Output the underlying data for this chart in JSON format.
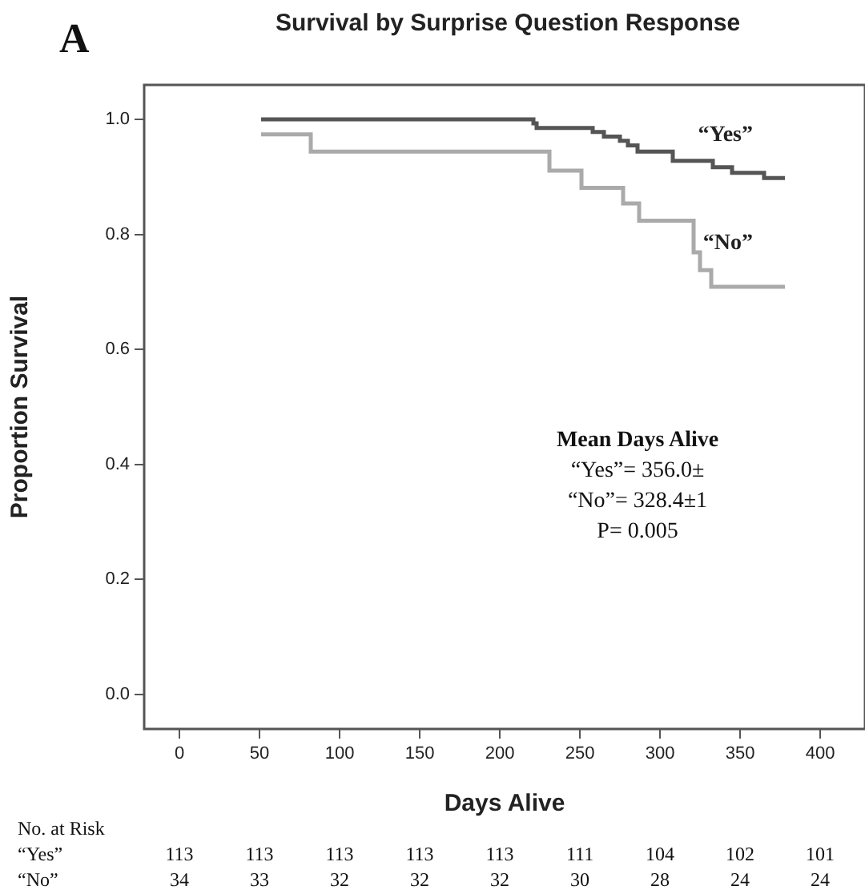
{
  "chart_data": {
    "type": "step",
    "title": "Survival by Surprise Question Response",
    "xlabel": "Days Alive",
    "ylabel": "Proportion Survival",
    "series": [
      {
        "name": "“Yes”",
        "color": "#555555",
        "x": [
          51,
          221,
          223,
          258,
          265,
          275,
          280,
          286,
          308,
          333,
          345,
          365,
          378
        ],
        "values": [
          1,
          0.993,
          0.985,
          0.978,
          0.97,
          0.963,
          0.955,
          0.944,
          0.928,
          0.917,
          0.907,
          0.898,
          0.898
        ]
      },
      {
        "name": "“No”",
        "color": "#aaaaaa",
        "x": [
          51,
          82,
          231,
          251,
          277,
          287,
          321,
          325,
          332,
          378
        ],
        "values": [
          0.974,
          0.944,
          0.911,
          0.881,
          0.854,
          0.824,
          0.769,
          0.738,
          0.709,
          0.709
        ]
      }
    ],
    "xlim": [
      -22,
      428
    ],
    "xticks": [
      0,
      50,
      100,
      150,
      200,
      250,
      300,
      350,
      400
    ],
    "ylim": [
      -0.06,
      1.06
    ],
    "yticks": [
      {
        "value": 0,
        "label": "0.0"
      },
      {
        "value": 0.2,
        "label": "0.2"
      },
      {
        "value": 0.4,
        "label": "0.4"
      },
      {
        "value": 0.6,
        "label": "0.6"
      },
      {
        "value": 0.8,
        "label": "0.8"
      },
      {
        "value": 1,
        "label": "1.0"
      }
    ],
    "annotations": [
      "A",
      "Mean Days Alive",
      "“Yes”= 356.0±",
      "“No”= 328.4±1",
      "P= 0.005",
      "No. at Risk",
      "“Yes”",
      "113",
      "113",
      "113",
      "113",
      "113",
      "111",
      "104",
      "102",
      "101",
      "“No”",
      "34",
      "33",
      "32",
      "32",
      "32",
      "30",
      "28",
      "24",
      "24"
    ]
  }
}
